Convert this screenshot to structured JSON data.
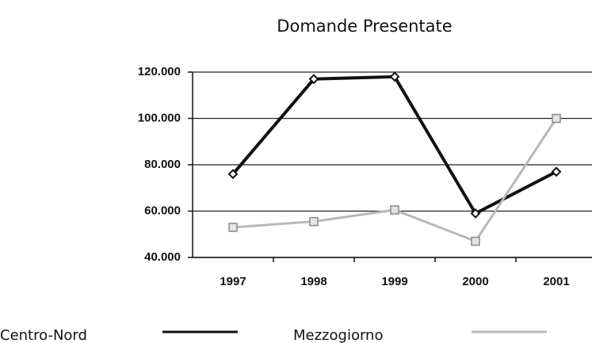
{
  "chart_data": {
    "type": "line",
    "title": "Domande Presentate",
    "categories": [
      "1997",
      "1998",
      "1999",
      "2000",
      "2001"
    ],
    "series": [
      {
        "name": "Centro-Nord",
        "color": "#111111",
        "values": [
          76000,
          117000,
          118000,
          59000,
          77000
        ]
      },
      {
        "name": "Mezzogiorno",
        "color": "#b8b8b8",
        "values": [
          53000,
          55500,
          60500,
          47000,
          100000
        ]
      }
    ],
    "ylim": [
      40000,
      120000
    ],
    "yticks": [
      {
        "value": 40000,
        "label": "40.000"
      },
      {
        "value": 60000,
        "label": "60.000"
      },
      {
        "value": 80000,
        "label": "80.000"
      },
      {
        "value": 100000,
        "label": "100.000"
      },
      {
        "value": 120000,
        "label": "120.000"
      }
    ],
    "grid": true,
    "legend": "bottom"
  }
}
